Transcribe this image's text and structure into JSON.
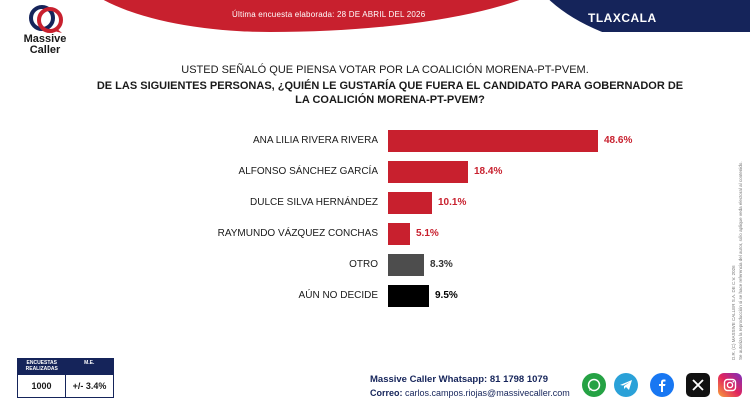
{
  "header": {
    "date_text": "Última encuesta elaborada: 28 DE ABRIL DEL 2026",
    "region": "TLAXCALA"
  },
  "logo": {
    "name_line1": "Massive",
    "name_line2": "Caller",
    "brand_colors": {
      "red": "#c8202e",
      "navy": "#15245a"
    }
  },
  "question": {
    "line1": "USTED SEÑALÓ QUE PIENSA VOTAR POR LA COALICIÓN MORENA-PT-PVEM.",
    "line2": "DE LAS SIGUIENTES PERSONAS, ¿QUIÉN LE GUSTARÍA QUE FUERA EL CANDIDATO PARA GOBERNADOR DE LA COALICIÓN MORENA-PT-PVEM?"
  },
  "chart_data": {
    "type": "bar",
    "orientation": "horizontal",
    "categories": [
      "ANA LILIA RIVERA RIVERA",
      "ALFONSO SÁNCHEZ GARCÍA",
      "DULCE SILVA HERNÁNDEZ",
      "RAYMUNDO VÁZQUEZ CONCHAS",
      "OTRO",
      "AÚN NO DECIDE"
    ],
    "values": [
      48.6,
      18.4,
      10.1,
      5.1,
      8.3,
      9.5
    ],
    "value_labels": [
      "48.6%",
      "18.4%",
      "10.1%",
      "5.1%",
      "8.3%",
      "9.5%"
    ],
    "colors": [
      "#c8202e",
      "#c8202e",
      "#c8202e",
      "#c8202e",
      "#4d4d4d",
      "#000000"
    ],
    "label_colors": [
      "#c8202e",
      "#c8202e",
      "#c8202e",
      "#c8202e",
      "#333333",
      "#000000"
    ],
    "xlim": [
      0,
      48.6
    ],
    "grid": false,
    "legend": "none"
  },
  "side_note": {
    "line1": "D.R. (C) MASSIVE CALLER S.A. DE C.V. 2026",
    "line2": "Se autoriza la reproducción si se hace referencia del autor, sólo aplique veda electoral al contenido."
  },
  "stats": {
    "head_1": "ENCUESTAS REALIZADAS",
    "head_2": "M.E.",
    "count": "1000",
    "margin": "+/- 3.4%"
  },
  "contact": {
    "whatsapp_label": "Massive Caller Whatsapp:",
    "whatsapp_number": "81 1798 1079",
    "email_label": "Correo:",
    "email": "carlos.campos.riojas@massivecaller.com"
  },
  "social_icons": [
    "whatsapp-icon",
    "telegram-icon",
    "facebook-icon",
    "x-icon",
    "instagram-icon"
  ]
}
